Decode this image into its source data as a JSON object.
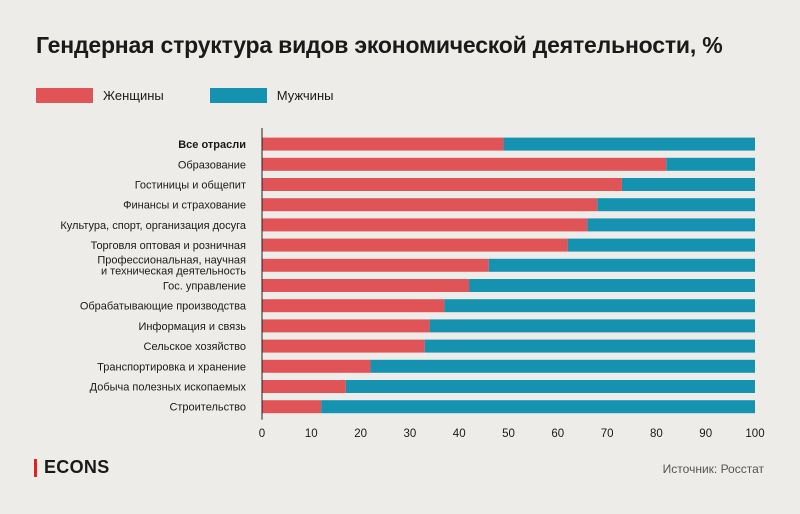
{
  "colors": {
    "women": "#e05457",
    "men": "#1492b0",
    "accent": "#e0231b"
  },
  "legend": {
    "women_label": "Женщины",
    "men_label": "Мужчины"
  },
  "footer": {
    "logo": "ECONS",
    "source": "Источник: Росстат"
  },
  "chart_data": {
    "type": "bar",
    "orientation": "horizontal",
    "stacked": true,
    "title": "Гендерная структура видов экономической деятельности, %",
    "categories": [
      "Все отрасли",
      "Образование",
      "Гостиницы и общепит",
      "Финансы и страхование",
      "Культура, спорт, организация досуга",
      "Торговля оптовая и розничная",
      "Профессиональная, научная\nи техническая деятельность",
      "Гос. управление",
      "Обрабатывающие производства",
      "Информация и связь",
      "Сельское хозяйство",
      "Транспортировка и хранение",
      "Добыча полезных ископаемых",
      "Строительство"
    ],
    "bold_category": "Все отрасли",
    "series": [
      {
        "name": "Женщины",
        "values": [
          49,
          82,
          73,
          68,
          66,
          62,
          46,
          42,
          37,
          34,
          33,
          22,
          17,
          12
        ]
      },
      {
        "name": "Мужчины",
        "values": [
          51,
          18,
          27,
          32,
          34,
          38,
          54,
          58,
          63,
          66,
          67,
          78,
          83,
          88
        ]
      }
    ],
    "xlim": [
      0,
      100
    ],
    "xticks": [
      "0",
      "10",
      "20",
      "30",
      "40",
      "50",
      "60",
      "70",
      "80",
      "90",
      "100"
    ],
    "xlabel": "",
    "ylabel": "",
    "grid": false,
    "legend_position": "top-left"
  }
}
